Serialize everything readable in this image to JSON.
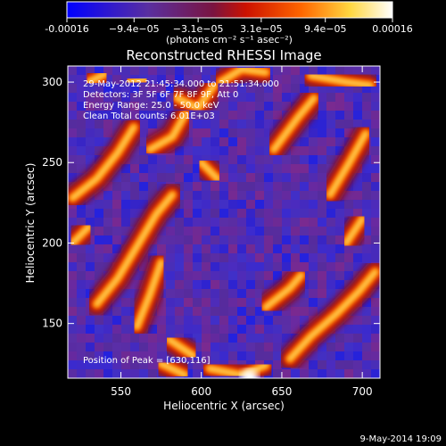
{
  "chart_data": {
    "type": "heatmap",
    "title": "Reconstructed RHESSI Image",
    "xlabel": "Heliocentric X (arcsec)",
    "ylabel": "Heliocentric Y (arcsec)",
    "xlim": [
      517,
      711
    ],
    "ylim": [
      116,
      310
    ],
    "xticks": [
      550,
      600,
      650,
      700
    ],
    "yticks": [
      150,
      200,
      250,
      300
    ],
    "colorbar": {
      "min": -0.00016,
      "max": 0.00016,
      "tick_values": [
        -0.00016,
        -9.4e-05,
        -3.1e-05,
        3.1e-05,
        9.4e-05,
        0.00016
      ],
      "tick_labels": [
        "-0.00016",
        "−9.4e−05",
        "−3.1e−05",
        "3.1e−05",
        "9.4e−05",
        "0.00016"
      ],
      "units_label": "(photons cm⁻² s⁻¹ asec⁻²)",
      "colors": [
        "#0000ff",
        "#5a2fa0",
        "#8a1a3a",
        "#cc1100",
        "#ff6600",
        "#ffd740",
        "#ffffff"
      ]
    },
    "info_lines": [
      "29-May-2012 21:45:34.000 to 21:51:34.000",
      "Detectors: 3F 5F 6F 7F 8F 9F, Att 0",
      "Energy Range: 25.0 - 50.0 keV",
      "Clean    Total counts: 6.01E+03"
    ],
    "peak_label": "Position of Peak = [630,116]",
    "peak": [
      630,
      116
    ],
    "bright_ridges": [
      [
        [
          520,
          228
        ],
        [
          535,
          240
        ],
        [
          548,
          256
        ],
        [
          558,
          272
        ]
      ],
      [
        [
          535,
          162
        ],
        [
          548,
          178
        ],
        [
          560,
          198
        ],
        [
          572,
          218
        ],
        [
          582,
          230
        ]
      ],
      [
        [
          560,
          148
        ],
        [
          568,
          168
        ],
        [
          575,
          188
        ]
      ],
      [
        [
          555,
          300
        ],
        [
          565,
          302
        ]
      ],
      [
        [
          585,
          290
        ],
        [
          598,
          284
        ],
        [
          608,
          298
        ]
      ],
      [
        [
          568,
          258
        ],
        [
          582,
          266
        ],
        [
          590,
          280
        ]
      ],
      [
        [
          530,
          300
        ],
        [
          540,
          305
        ]
      ],
      [
        [
          600,
          250
        ],
        [
          610,
          240
        ]
      ],
      [
        [
          612,
          300
        ],
        [
          625,
          308
        ],
        [
          640,
          306
        ]
      ],
      [
        [
          645,
          258
        ],
        [
          660,
          278
        ],
        [
          670,
          290
        ]
      ],
      [
        [
          668,
          304
        ],
        [
          690,
          300
        ],
        [
          705,
          298
        ]
      ],
      [
        [
          680,
          230
        ],
        [
          692,
          250
        ],
        [
          702,
          268
        ]
      ],
      [
        [
          690,
          200
        ],
        [
          700,
          215
        ]
      ],
      [
        [
          640,
          160
        ],
        [
          655,
          172
        ],
        [
          662,
          180
        ]
      ],
      [
        [
          655,
          128
        ],
        [
          668,
          142
        ],
        [
          684,
          156
        ],
        [
          698,
          170
        ],
        [
          708,
          182
        ]
      ],
      [
        [
          580,
          140
        ],
        [
          595,
          130
        ]
      ],
      [
        [
          605,
          122
        ],
        [
          625,
          118
        ],
        [
          640,
          124
        ]
      ],
      [
        [
          575,
          125
        ],
        [
          590,
          118
        ]
      ],
      [
        [
          520,
          200
        ],
        [
          530,
          210
        ]
      ]
    ]
  },
  "footer": {
    "date": "9-May-2014 19:09"
  }
}
